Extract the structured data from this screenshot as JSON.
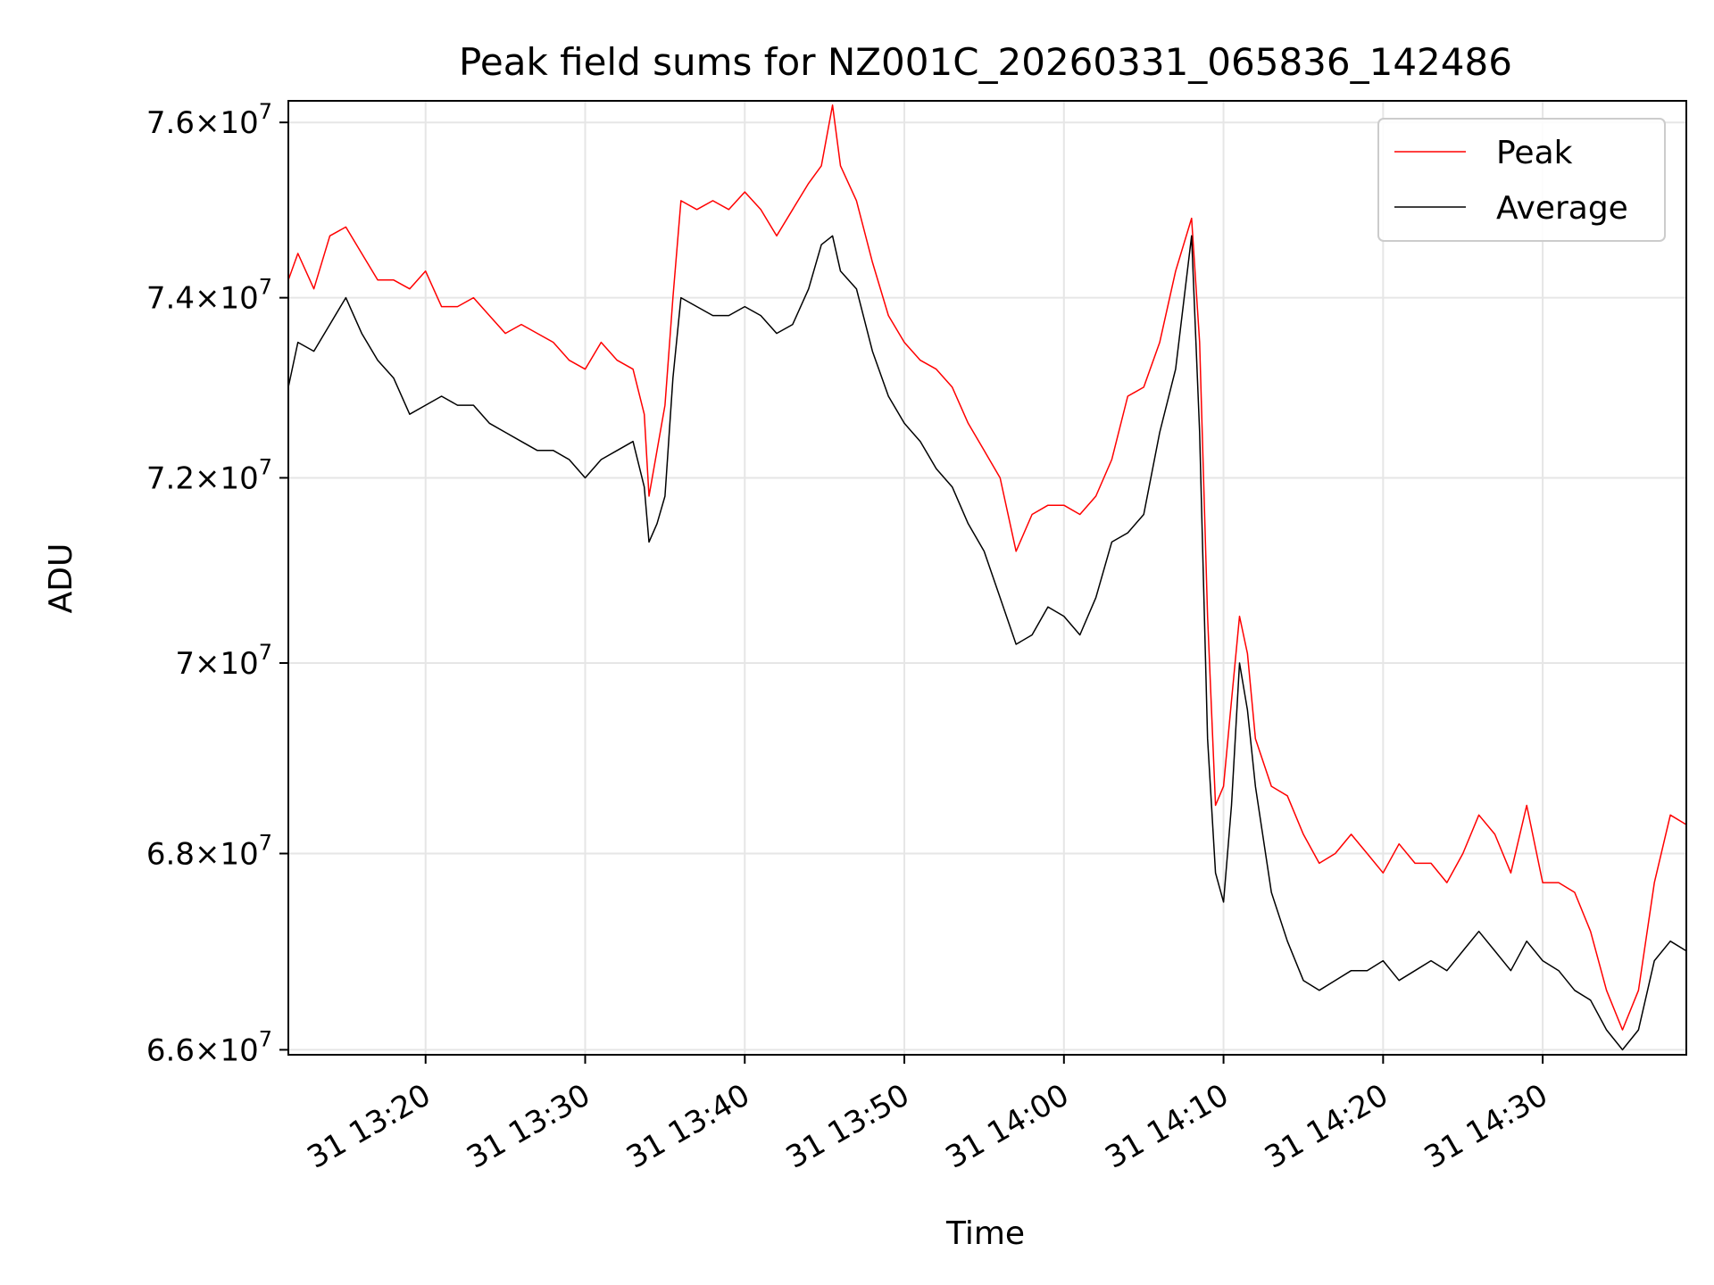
{
  "chart_data": {
    "type": "line",
    "title": "Peak field sums for NZ001C_20260331_065836_142486",
    "xlabel": "Time",
    "ylabel": "ADU",
    "x_unit": "minutes after 13:00 on day 31",
    "xlim": [
      11.4,
      99.0
    ],
    "ylim": [
      65.95,
      76.25
    ],
    "y_scale": "log",
    "grid": true,
    "legend_position": "top-right",
    "x_ticks": [
      {
        "value": 20,
        "label": "31 13:20"
      },
      {
        "value": 30,
        "label": "31 13:30"
      },
      {
        "value": 40,
        "label": "31 13:40"
      },
      {
        "value": 50,
        "label": "31 13:50"
      },
      {
        "value": 60,
        "label": "31 14:00"
      },
      {
        "value": 70,
        "label": "31 14:10"
      },
      {
        "value": 80,
        "label": "31 14:20"
      },
      {
        "value": 90,
        "label": "31 14:30"
      }
    ],
    "y_ticks": [
      {
        "value": 66,
        "mantissa": "6.6",
        "exponent": "7"
      },
      {
        "value": 68,
        "mantissa": "6.8",
        "exponent": "7"
      },
      {
        "value": 70,
        "mantissa": "7",
        "exponent": "7"
      },
      {
        "value": 72,
        "mantissa": "7.2",
        "exponent": "7"
      },
      {
        "value": 74,
        "mantissa": "7.4",
        "exponent": "7"
      },
      {
        "value": 76,
        "mantissa": "7.6",
        "exponent": "7"
      }
    ],
    "y_value_unit": "ADU / 1e6",
    "series": [
      {
        "name": "Peak",
        "color": "#ff0000",
        "x": [
          11.4,
          12.0,
          13.0,
          14.0,
          15.0,
          16.0,
          17.0,
          18.0,
          19.0,
          20.0,
          21.0,
          22.0,
          23.0,
          24.0,
          25.0,
          26.0,
          27.0,
          28.0,
          29.0,
          30.0,
          31.0,
          32.0,
          33.0,
          33.7,
          34.0,
          34.5,
          35.0,
          35.5,
          36.0,
          37.0,
          38.0,
          39.0,
          40.0,
          41.0,
          42.0,
          43.0,
          44.0,
          44.8,
          45.5,
          46.0,
          47.0,
          48.0,
          49.0,
          50.0,
          51.0,
          52.0,
          53.0,
          54.0,
          55.0,
          56.0,
          57.0,
          58.0,
          59.0,
          60.0,
          61.0,
          62.0,
          63.0,
          64.0,
          65.0,
          66.0,
          67.0,
          68.0,
          68.5,
          69.0,
          69.5,
          70.0,
          70.5,
          71.0,
          71.5,
          72.0,
          73.0,
          74.0,
          75.0,
          76.0,
          77.0,
          78.0,
          79.0,
          80.0,
          81.0,
          82.0,
          83.0,
          84.0,
          85.0,
          86.0,
          87.0,
          88.0,
          89.0,
          90.0,
          91.0,
          92.0,
          93.0,
          94.0,
          95.0,
          96.0,
          97.0,
          98.0,
          99.0
        ],
        "y": [
          74.2,
          74.5,
          74.1,
          74.7,
          74.8,
          74.5,
          74.2,
          74.2,
          74.1,
          74.3,
          73.9,
          73.9,
          74.0,
          73.8,
          73.6,
          73.7,
          73.6,
          73.5,
          73.3,
          73.2,
          73.5,
          73.3,
          73.2,
          72.7,
          71.8,
          72.3,
          72.8,
          74.0,
          75.1,
          75.0,
          75.1,
          75.0,
          75.2,
          75.0,
          74.7,
          75.0,
          75.3,
          75.5,
          76.2,
          75.5,
          75.1,
          74.4,
          73.8,
          73.5,
          73.3,
          73.2,
          73.0,
          72.6,
          72.3,
          72.0,
          71.2,
          71.6,
          71.7,
          71.7,
          71.6,
          71.8,
          72.2,
          72.9,
          73.0,
          73.5,
          74.3,
          74.9,
          73.5,
          70.5,
          68.5,
          68.7,
          69.6,
          70.5,
          70.1,
          69.2,
          68.7,
          68.6,
          68.2,
          67.9,
          68.0,
          68.2,
          68.0,
          67.8,
          68.1,
          67.9,
          67.9,
          67.7,
          68.0,
          68.4,
          68.2,
          67.8,
          68.5,
          67.7,
          67.7,
          67.6,
          67.2,
          66.6,
          66.2,
          66.6,
          67.7,
          68.4,
          68.3
        ]
      },
      {
        "name": "Average",
        "color": "#000000",
        "x": [
          11.4,
          12.0,
          13.0,
          14.0,
          15.0,
          16.0,
          17.0,
          18.0,
          19.0,
          20.0,
          21.0,
          22.0,
          23.0,
          24.0,
          25.0,
          26.0,
          27.0,
          28.0,
          29.0,
          30.0,
          31.0,
          32.0,
          33.0,
          33.7,
          34.0,
          34.5,
          35.0,
          35.5,
          36.0,
          37.0,
          38.0,
          39.0,
          40.0,
          41.0,
          42.0,
          43.0,
          44.0,
          44.8,
          45.5,
          46.0,
          47.0,
          48.0,
          49.0,
          50.0,
          51.0,
          52.0,
          53.0,
          54.0,
          55.0,
          56.0,
          57.0,
          58.0,
          59.0,
          60.0,
          61.0,
          62.0,
          63.0,
          64.0,
          65.0,
          66.0,
          67.0,
          68.0,
          68.5,
          69.0,
          69.5,
          70.0,
          70.5,
          71.0,
          71.5,
          72.0,
          73.0,
          74.0,
          75.0,
          76.0,
          77.0,
          78.0,
          79.0,
          80.0,
          81.0,
          82.0,
          83.0,
          84.0,
          85.0,
          86.0,
          87.0,
          88.0,
          89.0,
          90.0,
          91.0,
          92.0,
          93.0,
          94.0,
          95.0,
          96.0,
          97.0,
          98.0,
          99.0
        ],
        "y": [
          73.0,
          73.5,
          73.4,
          73.7,
          74.0,
          73.6,
          73.3,
          73.1,
          72.7,
          72.8,
          72.9,
          72.8,
          72.8,
          72.6,
          72.5,
          72.4,
          72.3,
          72.3,
          72.2,
          72.0,
          72.2,
          72.3,
          72.4,
          71.9,
          71.3,
          71.5,
          71.8,
          73.1,
          74.0,
          73.9,
          73.8,
          73.8,
          73.9,
          73.8,
          73.6,
          73.7,
          74.1,
          74.6,
          74.7,
          74.3,
          74.1,
          73.4,
          72.9,
          72.6,
          72.4,
          72.1,
          71.9,
          71.5,
          71.2,
          70.7,
          70.2,
          70.3,
          70.6,
          70.5,
          70.3,
          70.7,
          71.3,
          71.4,
          71.6,
          72.5,
          73.2,
          74.7,
          72.5,
          69.2,
          67.8,
          67.5,
          68.5,
          70.0,
          69.5,
          68.7,
          67.6,
          67.1,
          66.7,
          66.6,
          66.7,
          66.8,
          66.8,
          66.9,
          66.7,
          66.8,
          66.9,
          66.8,
          67.0,
          67.2,
          67.0,
          66.8,
          67.1,
          66.9,
          66.8,
          66.6,
          66.5,
          66.2,
          66.0,
          66.2,
          66.9,
          67.1,
          67.0
        ]
      }
    ]
  }
}
